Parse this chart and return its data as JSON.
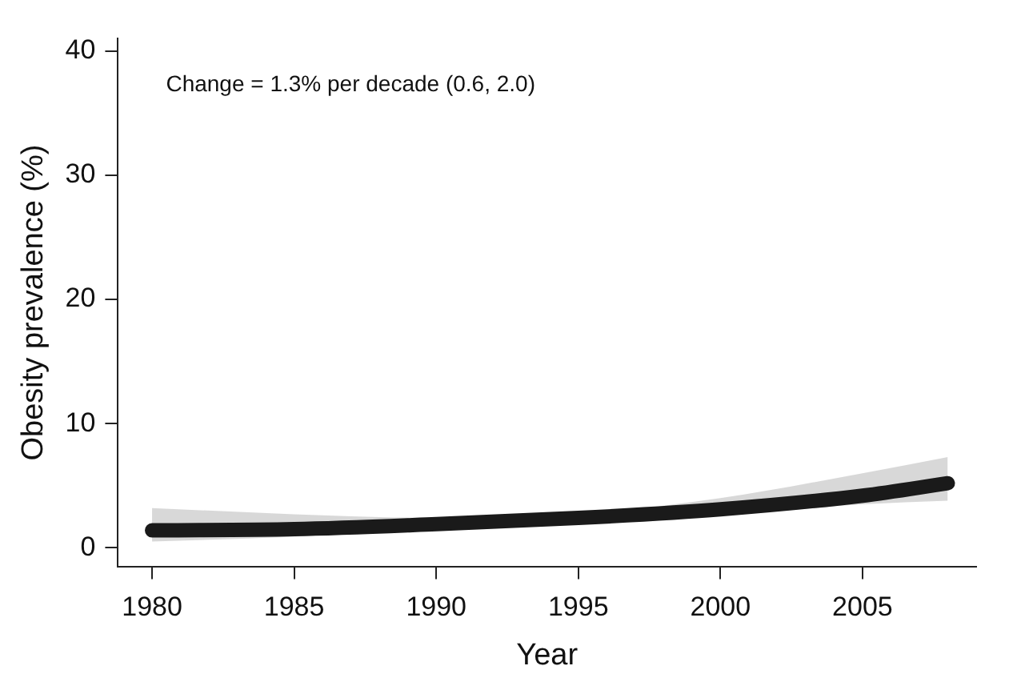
{
  "chart_data": {
    "type": "line",
    "xlabel": "Year",
    "ylabel": "Obesity prevalence (%)",
    "annotations": [
      "Change = 1.3% per decade (0.6, 2.0)"
    ],
    "x": [
      1980,
      1985,
      1990,
      1995,
      2000,
      2005,
      2008
    ],
    "series": [
      {
        "color": "#1a1a1a",
        "values": [
          1.4,
          1.5,
          1.9,
          2.4,
          3.1,
          4.2,
          5.2
        ],
        "lower": [
          0.5,
          0.9,
          1.5,
          2.0,
          2.6,
          3.5,
          3.8
        ],
        "upper": [
          3.2,
          2.7,
          2.4,
          2.7,
          4.0,
          6.0,
          7.3
        ]
      }
    ],
    "xlim": [
      1978.8,
      2009
    ],
    "xticks": [
      1980,
      1985,
      1990,
      1995,
      2000,
      2005
    ],
    "ylim": [
      -1.5,
      41
    ],
    "yticks": [
      0,
      10,
      20,
      30,
      40
    ],
    "grid": false,
    "legend": false,
    "marker": "none",
    "line_style": "solid"
  }
}
